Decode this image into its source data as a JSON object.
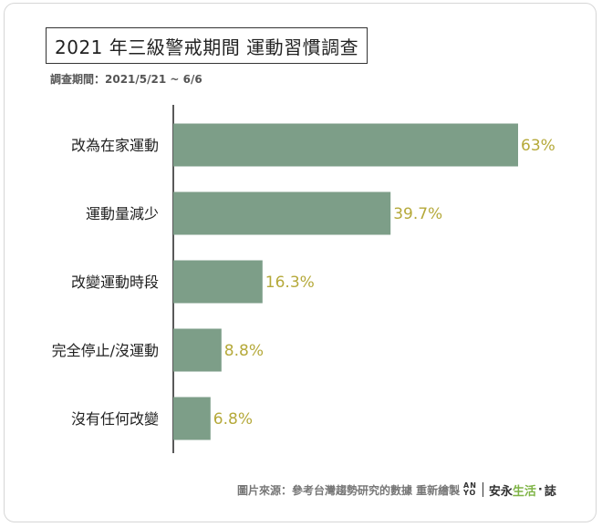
{
  "title": "2021 年三級警戒期間 運動習慣調查",
  "subtitle": "調查期間：2021/5/21 ~ 6/6",
  "source": "圖片來源：參考台灣趨勢研究的數據 重新繪製",
  "brand": {
    "mark_top": "AN",
    "mark_bottom": "YO",
    "name_part1": "安永",
    "name_part2": "生活",
    "dot": "·",
    "name_part3": "誌"
  },
  "colors": {
    "bar": "#7d9e88",
    "value_label": "#b5a93a",
    "axis": "#222222",
    "brand_accent": "#7fb446"
  },
  "chart_data": {
    "type": "bar",
    "orientation": "horizontal",
    "categories": [
      "改為在家運動",
      "運動量減少",
      "改變運動時段",
      "完全停止/沒運動",
      "沒有任何改變"
    ],
    "values": [
      63,
      39.7,
      16.3,
      8.8,
      6.8
    ],
    "value_labels": [
      "63%",
      "39.7%",
      "16.3%",
      "8.8%",
      "6.8%"
    ],
    "unit": "%",
    "xlim": [
      0,
      63
    ],
    "grid": false,
    "legend": "none"
  }
}
